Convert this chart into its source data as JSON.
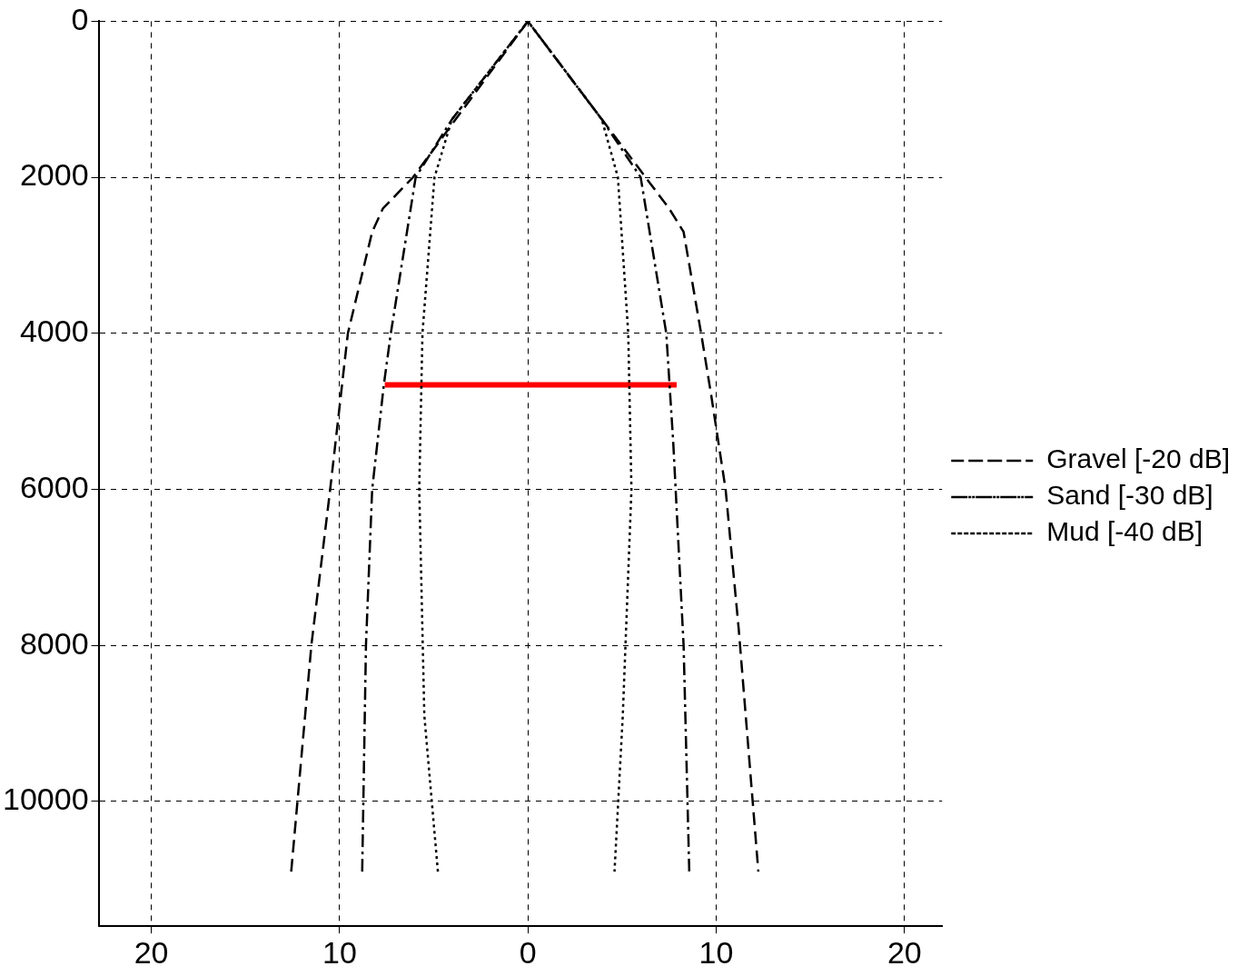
{
  "chart_data": {
    "type": "line",
    "xlim": [
      -22.8,
      22
    ],
    "ylim": [
      11600,
      0
    ],
    "xticks": [
      {
        "value": -20,
        "label": "20"
      },
      {
        "value": -10,
        "label": "10"
      },
      0,
      10,
      20
    ],
    "yticks": [
      0,
      2000,
      4000,
      6000,
      8000,
      10000
    ],
    "grid": true,
    "legend": "right",
    "marker": "none",
    "series": [
      {
        "name": "Gravel [-20 dB]",
        "color": "#000000",
        "line_style": "dashed",
        "x": [
          -12.57,
          -11.5,
          -10.5,
          -9.56,
          -8.27,
          -7.7,
          -6.1,
          0,
          7.5,
          8.27,
          9.2,
          9.74,
          10.5,
          11.2,
          12.24
        ],
        "values": [
          10900,
          8000,
          6000,
          4000,
          2700,
          2400,
          2000,
          0,
          2400,
          2700,
          4000,
          4800,
          6000,
          7800,
          10900
        ]
      },
      {
        "name": "Sand [-30 dB]",
        "color": "#000000",
        "line_style": "dashdot",
        "x": [
          -8.8,
          -8.6,
          -8.27,
          -7.65,
          -7.28,
          -5.96,
          -4.04,
          0,
          3.93,
          5.99,
          7.35,
          7.72,
          8.27,
          8.57
        ],
        "values": [
          10900,
          8000,
          6000,
          4660,
          4000,
          2000,
          1260,
          0,
          1260,
          2000,
          4000,
          5400,
          8000,
          10900
        ]
      },
      {
        "name": "Mud [-40 dB]",
        "color": "#000000",
        "line_style": "dotted",
        "x": [
          -4.78,
          -5.5,
          -5.77,
          -5.6,
          -4.96,
          -4.04,
          0,
          3.93,
          4.78,
          5.33,
          5.5,
          5.04,
          4.6
        ],
        "values": [
          10900,
          8900,
          6000,
          4000,
          2000,
          1260,
          0,
          1260,
          2000,
          4000,
          6000,
          8900,
          10900
        ]
      },
      {
        "color": "#ff0000",
        "line_style": "solid",
        "x": [
          -7.6,
          7.9
        ],
        "values": [
          4660,
          4660
        ]
      }
    ]
  }
}
